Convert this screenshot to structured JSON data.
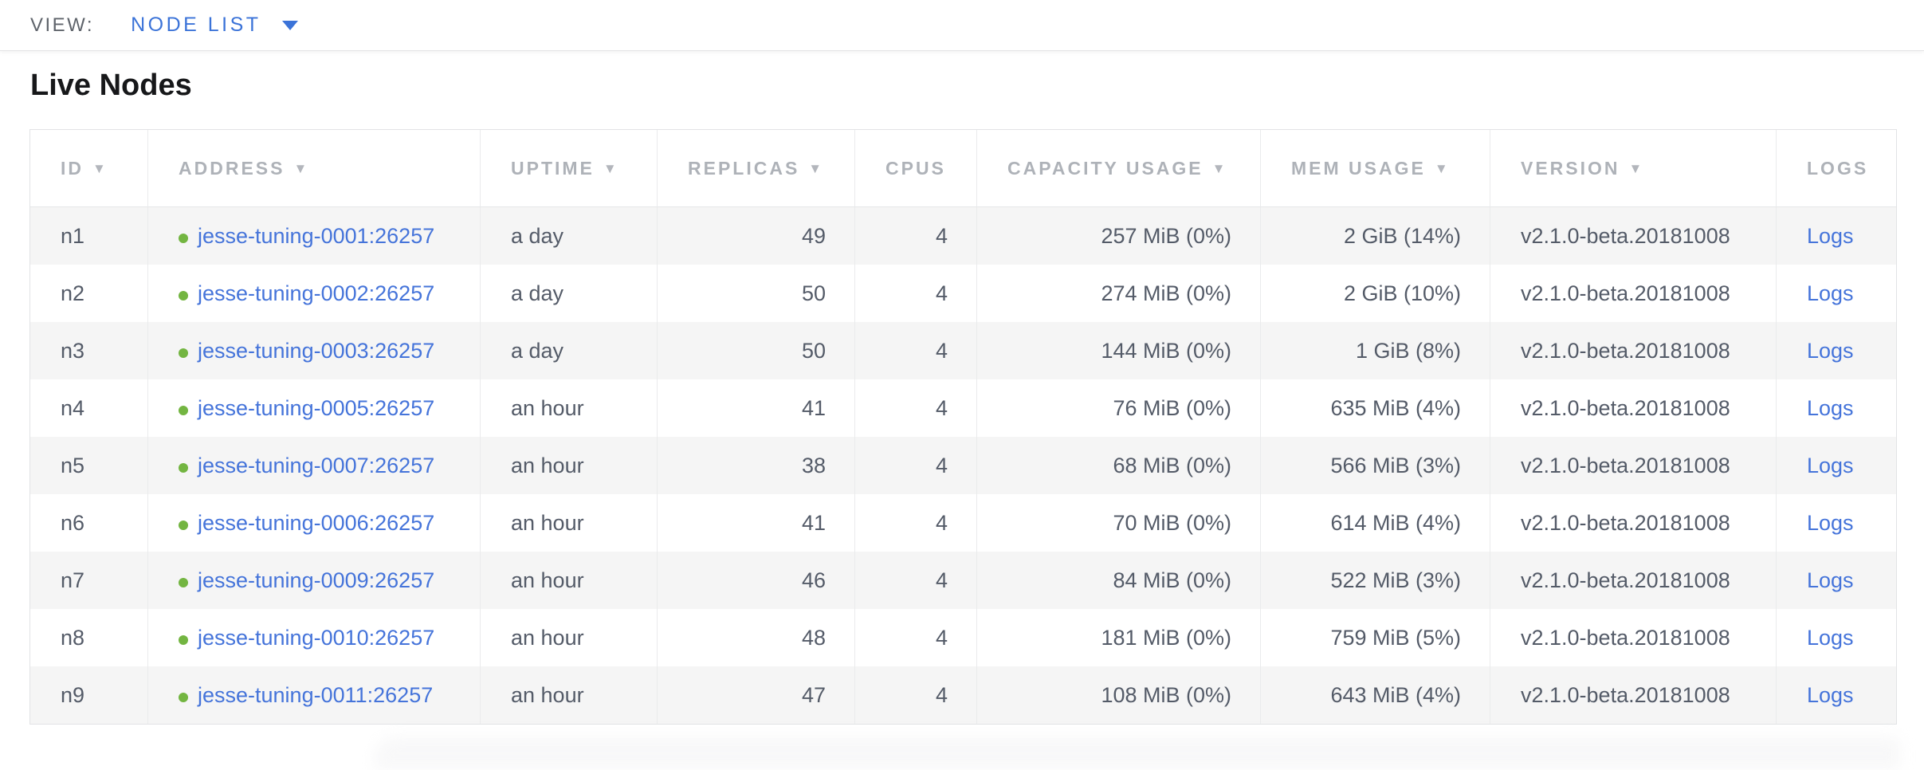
{
  "view_bar": {
    "label": "VIEW:",
    "selected_view": "NODE LIST"
  },
  "page_title": "Live Nodes",
  "icons": {
    "sort_descending": "▼"
  },
  "colors": {
    "link_blue": "#4574da",
    "view_selector_blue": "#3b73d8",
    "live_dot_green": "#73b541",
    "header_text_gray": "#aeb2b8",
    "body_text": "#545b68",
    "row_stripe": "#f5f5f5"
  },
  "table": {
    "columns": [
      {
        "label": "ID",
        "sortable": true,
        "align": "left"
      },
      {
        "label": "ADDRESS",
        "sortable": true,
        "align": "left"
      },
      {
        "label": "UPTIME",
        "sortable": true,
        "align": "left"
      },
      {
        "label": "REPLICAS",
        "sortable": true,
        "align": "right"
      },
      {
        "label": "CPUS",
        "sortable": false,
        "align": "right"
      },
      {
        "label": "CAPACITY USAGE",
        "sortable": true,
        "align": "right"
      },
      {
        "label": "MEM USAGE",
        "sortable": true,
        "align": "right"
      },
      {
        "label": "VERSION",
        "sortable": true,
        "align": "left"
      },
      {
        "label": "LOGS",
        "sortable": false,
        "align": "left"
      }
    ],
    "rows": [
      {
        "id": "n1",
        "status": "live",
        "address": "jesse-tuning-0001:26257",
        "uptime": "a day",
        "replicas": "49",
        "cpus": "4",
        "capacity_usage": "257 MiB (0%)",
        "mem_usage": "2 GiB (14%)",
        "version": "v2.1.0-beta.20181008",
        "logs": "Logs"
      },
      {
        "id": "n2",
        "status": "live",
        "address": "jesse-tuning-0002:26257",
        "uptime": "a day",
        "replicas": "50",
        "cpus": "4",
        "capacity_usage": "274 MiB (0%)",
        "mem_usage": "2 GiB (10%)",
        "version": "v2.1.0-beta.20181008",
        "logs": "Logs"
      },
      {
        "id": "n3",
        "status": "live",
        "address": "jesse-tuning-0003:26257",
        "uptime": "a day",
        "replicas": "50",
        "cpus": "4",
        "capacity_usage": "144 MiB (0%)",
        "mem_usage": "1 GiB (8%)",
        "version": "v2.1.0-beta.20181008",
        "logs": "Logs"
      },
      {
        "id": "n4",
        "status": "live",
        "address": "jesse-tuning-0005:26257",
        "uptime": "an hour",
        "replicas": "41",
        "cpus": "4",
        "capacity_usage": "76 MiB (0%)",
        "mem_usage": "635 MiB (4%)",
        "version": "v2.1.0-beta.20181008",
        "logs": "Logs"
      },
      {
        "id": "n5",
        "status": "live",
        "address": "jesse-tuning-0007:26257",
        "uptime": "an hour",
        "replicas": "38",
        "cpus": "4",
        "capacity_usage": "68 MiB (0%)",
        "mem_usage": "566 MiB (3%)",
        "version": "v2.1.0-beta.20181008",
        "logs": "Logs"
      },
      {
        "id": "n6",
        "status": "live",
        "address": "jesse-tuning-0006:26257",
        "uptime": "an hour",
        "replicas": "41",
        "cpus": "4",
        "capacity_usage": "70 MiB (0%)",
        "mem_usage": "614 MiB (4%)",
        "version": "v2.1.0-beta.20181008",
        "logs": "Logs"
      },
      {
        "id": "n7",
        "status": "live",
        "address": "jesse-tuning-0009:26257",
        "uptime": "an hour",
        "replicas": "46",
        "cpus": "4",
        "capacity_usage": "84 MiB (0%)",
        "mem_usage": "522 MiB (3%)",
        "version": "v2.1.0-beta.20181008",
        "logs": "Logs"
      },
      {
        "id": "n8",
        "status": "live",
        "address": "jesse-tuning-0010:26257",
        "uptime": "an hour",
        "replicas": "48",
        "cpus": "4",
        "capacity_usage": "181 MiB (0%)",
        "mem_usage": "759 MiB (5%)",
        "version": "v2.1.0-beta.20181008",
        "logs": "Logs"
      },
      {
        "id": "n9",
        "status": "live",
        "address": "jesse-tuning-0011:26257",
        "uptime": "an hour",
        "replicas": "47",
        "cpus": "4",
        "capacity_usage": "108 MiB (0%)",
        "mem_usage": "643 MiB (4%)",
        "version": "v2.1.0-beta.20181008",
        "logs": "Logs"
      }
    ]
  }
}
